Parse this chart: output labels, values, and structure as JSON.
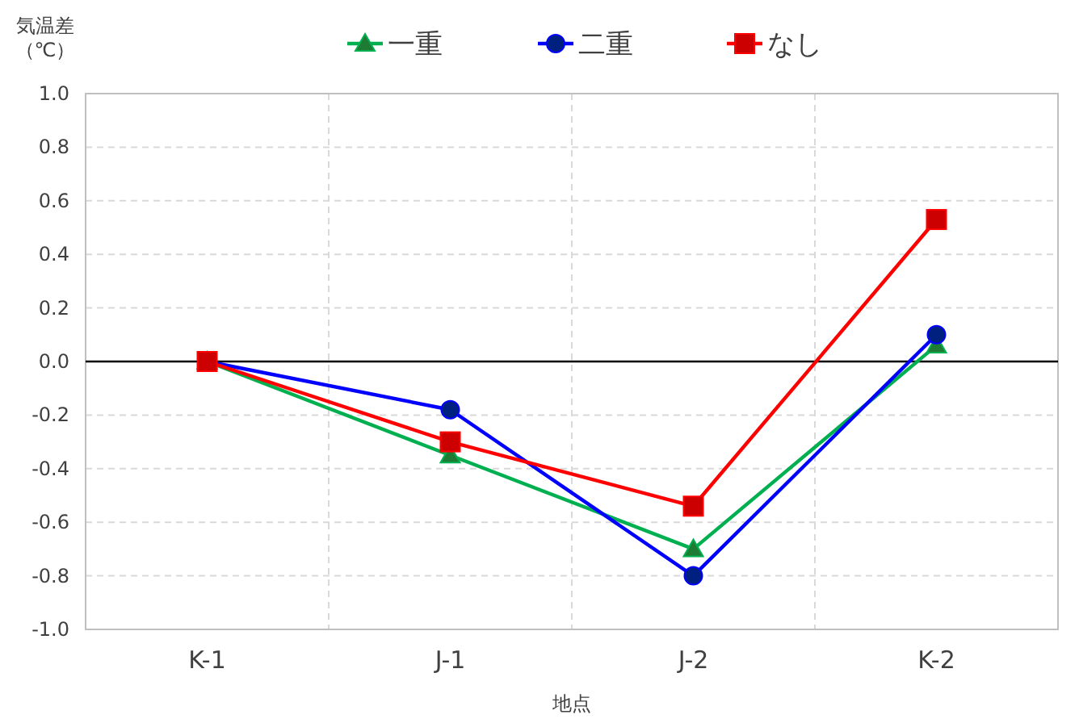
{
  "chart_data": {
    "type": "line",
    "ylabel": "気温差（℃）",
    "xlabel": "地点",
    "categories": [
      "K-1",
      "J-1",
      "J-2",
      "K-2"
    ],
    "series": [
      {
        "name": "一重",
        "color": "#00b050",
        "marker": "triangle",
        "values": [
          0,
          -0.35,
          -0.7,
          0.06
        ]
      },
      {
        "name": "二重",
        "color": "#0000ff",
        "marker": "circle",
        "values": [
          0,
          -0.18,
          -0.8,
          0.1
        ]
      },
      {
        "name": "なし",
        "color": "#ff0000",
        "marker": "square",
        "values": [
          0,
          -0.3,
          -0.54,
          0.53
        ]
      }
    ],
    "ylim": [
      -1.0,
      1.0
    ],
    "yticks": [
      {
        "value": -1.0,
        "label": "-1.0"
      },
      {
        "value": -0.8,
        "label": "-0.8"
      },
      {
        "value": -0.6,
        "label": "-0.6"
      },
      {
        "value": -0.4,
        "label": "-0.4"
      },
      {
        "value": -0.2,
        "label": "-0.2"
      },
      {
        "value": 0,
        "label": "0.0"
      },
      {
        "value": 0.2,
        "label": "0.2"
      },
      {
        "value": 0.4,
        "label": "0.4"
      },
      {
        "value": 0.6,
        "label": "0.6"
      },
      {
        "value": 0.8,
        "label": "0.8"
      },
      {
        "value": 1.0,
        "label": "1.0"
      }
    ],
    "ref_lines": [
      {
        "axis": "y",
        "value": 0,
        "color": "#000000"
      }
    ],
    "grid": true,
    "legend": "top",
    "line_style": "solid"
  }
}
